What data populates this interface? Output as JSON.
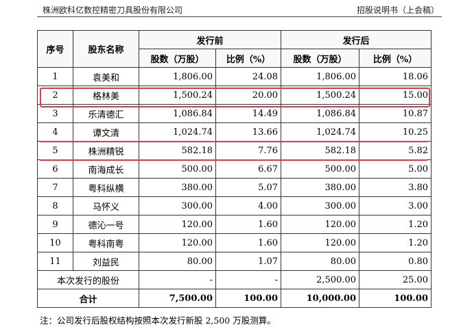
{
  "header": {
    "company": "株洲欧科亿数控精密刀具股份有限公司",
    "doc": "招股说明书（上会稿）"
  },
  "table": {
    "head": {
      "seq": "序号",
      "name": "股东名称",
      "before": "发行前",
      "after": "发行后",
      "shares": "股数（万股）",
      "ratio": "比例（%）"
    },
    "rows": [
      {
        "seq": "1",
        "name": "袁美和",
        "before_shares": "1,806.00",
        "before_ratio": "24.08",
        "after_shares": "1,806.00",
        "after_ratio": "18.06"
      },
      {
        "seq": "2",
        "name": "格林美",
        "before_shares": "1,500.24",
        "before_ratio": "20.00",
        "after_shares": "1,500.24",
        "after_ratio": "15.00"
      },
      {
        "seq": "3",
        "name": "乐清德汇",
        "before_shares": "1,086.84",
        "before_ratio": "14.49",
        "after_shares": "1,086.84",
        "after_ratio": "10.87"
      },
      {
        "seq": "4",
        "name": "谭文清",
        "before_shares": "1,024.74",
        "before_ratio": "13.66",
        "after_shares": "1,024.74",
        "after_ratio": "10.25"
      },
      {
        "seq": "5",
        "name": "株洲精锐",
        "before_shares": "582.18",
        "before_ratio": "7.76",
        "after_shares": "582.18",
        "after_ratio": "5.82"
      },
      {
        "seq": "6",
        "name": "南海成长",
        "before_shares": "500.00",
        "before_ratio": "6.67",
        "after_shares": "500.00",
        "after_ratio": "5.00"
      },
      {
        "seq": "7",
        "name": "粤科纵横",
        "before_shares": "380.00",
        "before_ratio": "5.07",
        "after_shares": "380.00",
        "after_ratio": "3.80"
      },
      {
        "seq": "8",
        "name": "马怀义",
        "before_shares": "300.00",
        "before_ratio": "4.00",
        "after_shares": "300.00",
        "after_ratio": "3.00"
      },
      {
        "seq": "9",
        "name": "德沁一号",
        "before_shares": "120.00",
        "before_ratio": "1.60",
        "after_shares": "120.00",
        "after_ratio": "1.20"
      },
      {
        "seq": "10",
        "name": "粤科南粤",
        "before_shares": "120.00",
        "before_ratio": "1.60",
        "after_shares": "120.00",
        "after_ratio": "1.20"
      },
      {
        "seq": "11",
        "name": "刘益民",
        "before_shares": "80.00",
        "before_ratio": "1.07",
        "after_shares": "80.00",
        "after_ratio": "0.80"
      }
    ],
    "issue_row": {
      "label": "本次发行的股份",
      "before_shares": "-",
      "before_ratio": "-",
      "after_shares": "2,500.00",
      "after_ratio": "25.00"
    },
    "total_row": {
      "label": "合计",
      "before_shares": "7,500.00",
      "before_ratio": "100.00",
      "after_shares": "10,000.00",
      "after_ratio": "100.00"
    }
  },
  "note": "注：公司发行后股权结构按照本次发行新股 2,500 万股测算。",
  "colors": {
    "highlight": "#e0384c",
    "rule": "#333333"
  }
}
